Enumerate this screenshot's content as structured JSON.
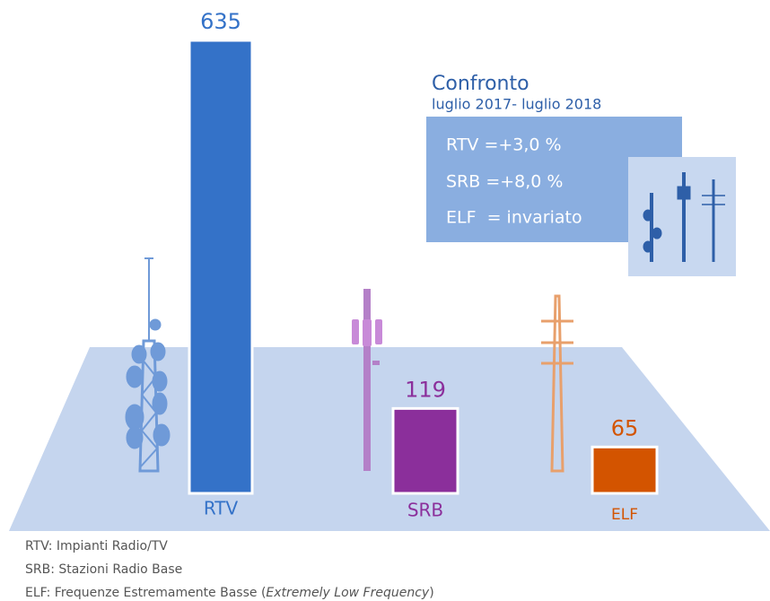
{
  "chart_data": {
    "type": "bar",
    "categories": [
      "RTV",
      "SRB",
      "ELF"
    ],
    "values": [
      635,
      119,
      65
    ],
    "colors": [
      "#3472c8",
      "#8b2f9b",
      "#d35400"
    ],
    "ylim": [
      0,
      635
    ],
    "comparison": {
      "title": "Confronto",
      "subtitle": "luglio 2017- luglio 2018",
      "lines": [
        "RTV =+3,0 %",
        "SRB =+8,0 %",
        "ELF  = invariato"
      ]
    },
    "footnotes": [
      {
        "text": "RTV: Impianti Radio/TV"
      },
      {
        "text": "SRB: Stazioni Radio Base"
      },
      {
        "text": "ELF: Frequenze Estremamente Basse (",
        "italic": "Extremely Low Frequency",
        "end": ")"
      }
    ]
  }
}
